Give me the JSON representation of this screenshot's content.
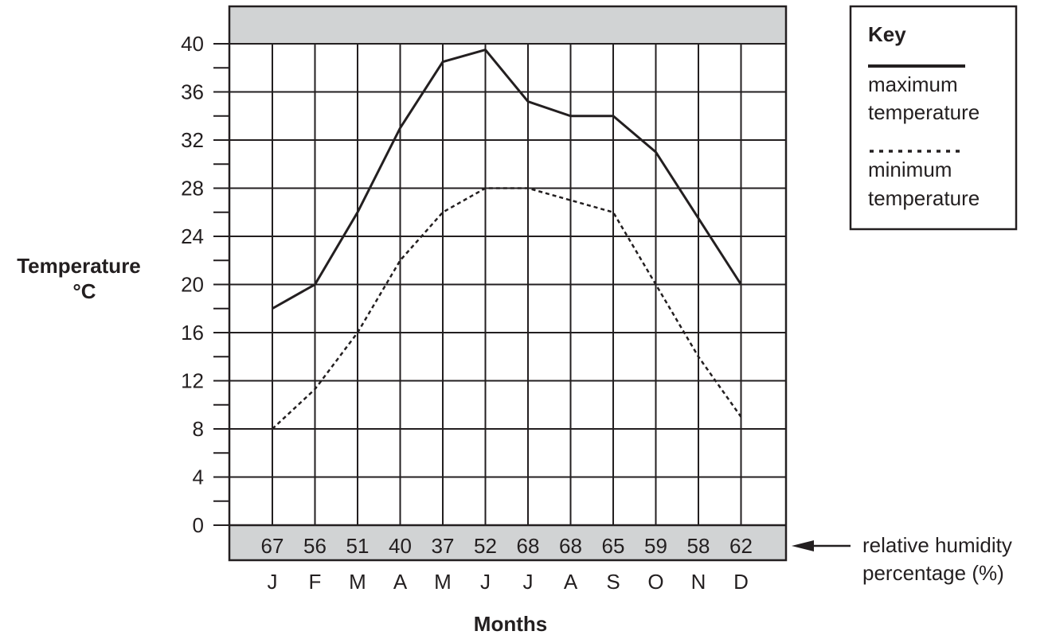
{
  "chart_data": {
    "type": "line",
    "xlabel": "Months",
    "ylabel_line1": "Temperature",
    "ylabel_line2": "°C",
    "categories": [
      "J",
      "F",
      "M",
      "A",
      "M",
      "J",
      "J",
      "A",
      "S",
      "O",
      "N",
      "D"
    ],
    "y_ticks": [
      "0",
      "4",
      "8",
      "12",
      "16",
      "20",
      "24",
      "28",
      "32",
      "36",
      "40"
    ],
    "ylim": [
      0,
      40
    ],
    "grid": true,
    "legend_placement": "top-right",
    "series": [
      {
        "name": "maximum temperature",
        "style": "solid",
        "values": [
          18,
          20,
          26,
          33,
          38.5,
          39.5,
          35.2,
          34,
          34,
          31,
          25.5,
          20
        ]
      },
      {
        "name": "minimum temperature",
        "style": "dotted",
        "values": [
          8,
          11.3,
          16,
          22,
          26,
          28,
          28,
          27,
          26,
          20,
          14,
          9
        ]
      }
    ],
    "humidity": {
      "values": [
        "67",
        "56",
        "51",
        "40",
        "37",
        "52",
        "68",
        "68",
        "65",
        "59",
        "58",
        "62"
      ],
      "label_line1": "relative humidity",
      "label_line2": "percentage (%)"
    }
  },
  "key": {
    "title": "Key",
    "max_line1": "maximum",
    "max_line2": "temperature",
    "min_line1": "minimum",
    "min_line2": "temperature"
  },
  "colors": {
    "ink": "#231f20",
    "band": "#d1d3d4"
  }
}
